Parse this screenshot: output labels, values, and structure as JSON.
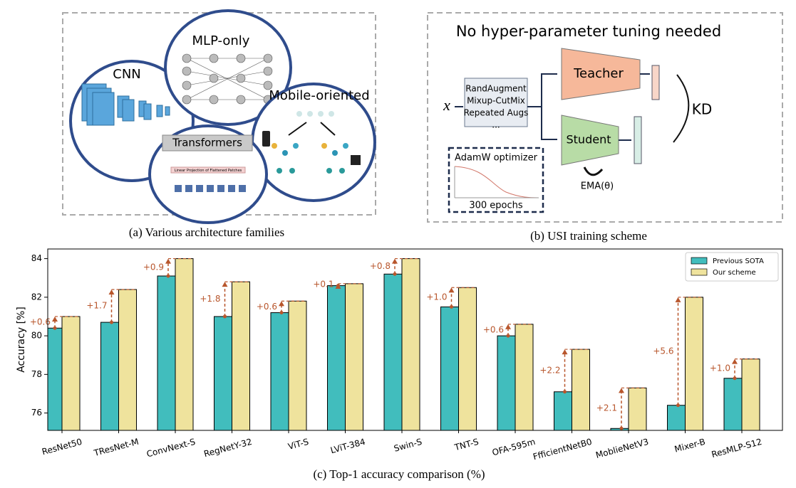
{
  "figure_a": {
    "labels": {
      "cnn": "CNN",
      "mlp": "MLP-only",
      "mobile": "Mobile-oriented",
      "transformers": "Transformers",
      "projection": "Linear Projection of Flattened Patches"
    },
    "caption": "(a) Various architecture families"
  },
  "figure_b": {
    "title": "No hyper-parameter tuning needed",
    "input": "x",
    "augmentations": [
      "RandAugment",
      "Mixup-CutMix",
      "Repeated Augs",
      "..."
    ],
    "teacher": "Teacher",
    "student": "Student",
    "kd": "KD",
    "ema": "EMA(θ)",
    "optimizer": "AdamW optimizer",
    "epochs": "300 epochs",
    "caption": "(b) USI training scheme"
  },
  "chart_data": {
    "type": "bar",
    "caption": "(c) Top-1 accuracy comparison (%)",
    "ylabel": "Accuracy [%]",
    "categories": [
      "ResNet50",
      "TResNet-M",
      "ConvNext-S",
      "RegNetY-32",
      "ViT-S",
      "LViT-384",
      "Swin-S",
      "TNT-S",
      "OFA-595m",
      "FfficientNetB0",
      "MoblieNetV3",
      "Mixer-B",
      "ResMLP-S12"
    ],
    "series": [
      {
        "name": "Previous SOTA",
        "color": "#41bdbd",
        "values": [
          80.4,
          80.7,
          83.1,
          81.0,
          81.2,
          82.6,
          83.2,
          81.5,
          80.0,
          77.1,
          75.2,
          76.4,
          77.8
        ]
      },
      {
        "name": "Our scheme",
        "color": "#efe39d",
        "values": [
          81.0,
          82.4,
          84.0,
          82.8,
          81.8,
          82.7,
          84.0,
          82.5,
          80.6,
          79.3,
          77.3,
          82.0,
          78.8
        ]
      }
    ],
    "annotations": [
      "+0.6",
      "+1.7",
      "+0.9",
      "+1.8",
      "+0.6",
      "+0.1",
      "+0.8",
      "+1.0",
      "+0.6",
      "+2.2",
      "+2.1",
      "+5.6",
      "+1.0"
    ],
    "annotation_color": "#b8562c",
    "ylim": [
      75.1,
      84.5
    ],
    "yticks": [
      76,
      78,
      80,
      82,
      84
    ],
    "legend": "upper right",
    "grid": false
  }
}
